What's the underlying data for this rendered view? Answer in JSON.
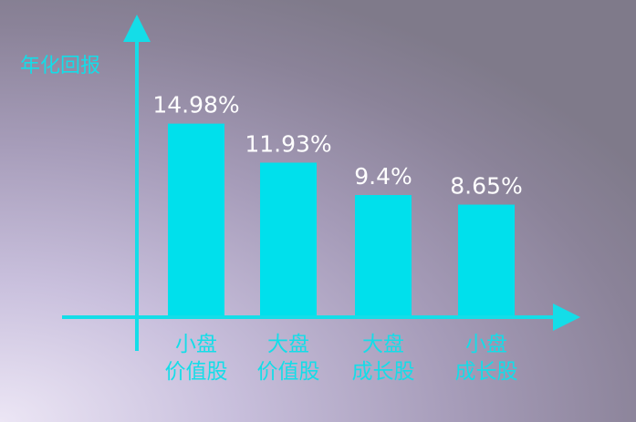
{
  "chart_data": {
    "type": "bar",
    "ylabel": "年化回报",
    "xlabel": "",
    "categories": [
      [
        "小盘",
        "价值股"
      ],
      [
        "大盘",
        "价值股"
      ],
      [
        "大盘",
        "成长股"
      ],
      [
        "小盘",
        "成长股"
      ]
    ],
    "values": [
      14.98,
      11.93,
      9.4,
      8.65
    ],
    "value_labels": [
      "14.98%",
      "11.93%",
      "9.4%",
      "8.65%"
    ],
    "ylim": [
      0,
      23.5
    ],
    "grid": false,
    "legend": "none",
    "bar_color": "#00e0ec",
    "axis_color": "#14dde8",
    "label_color": "#ffffff"
  }
}
